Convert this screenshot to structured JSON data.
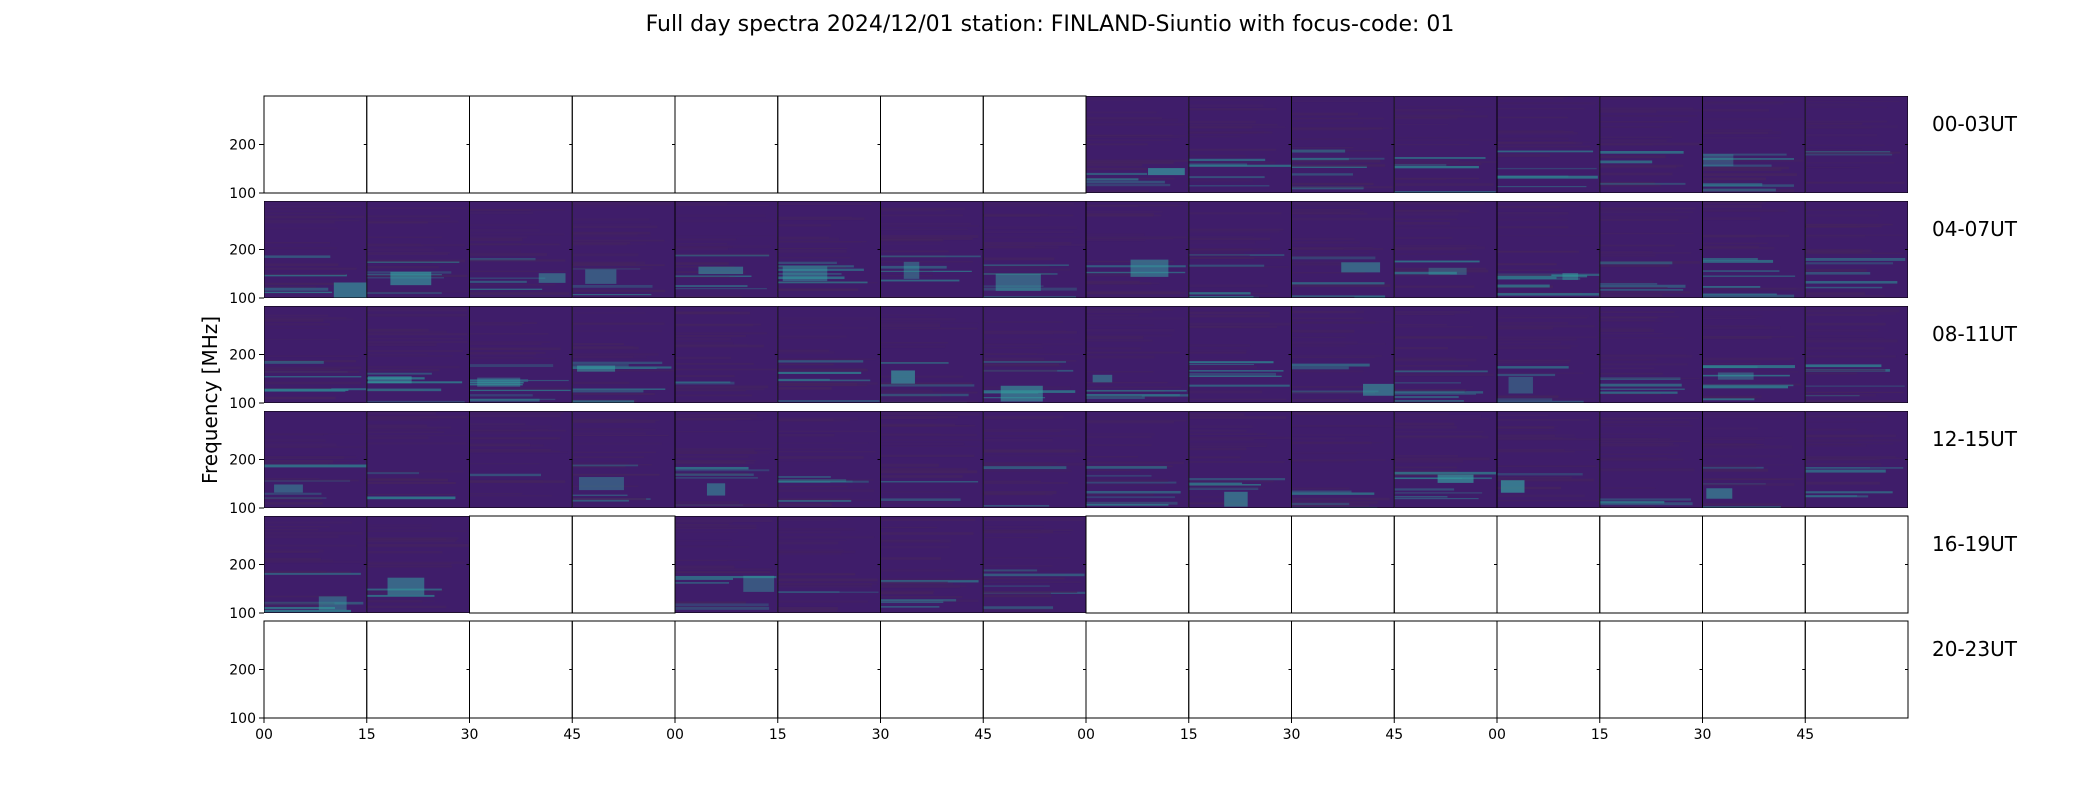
{
  "title": "Full day spectra 2024/12/01 station: FINLAND-Siuntio with focus-code: 01",
  "chart_data": {
    "type": "heatmap",
    "title": "Full day spectra 2024/12/01 station: FINLAND-Siuntio with focus-code: 01",
    "ylabel": "Frequency [MHz]",
    "xlabel": "",
    "ylim": [
      100,
      300
    ],
    "y_ticks": [
      "100",
      "200"
    ],
    "x_ticks": [
      "00",
      "15",
      "30",
      "45",
      "00",
      "15",
      "30",
      "45",
      "00",
      "15",
      "30",
      "45",
      "00",
      "15",
      "30",
      "45"
    ],
    "colormap": "viridis",
    "panels_per_row": 16,
    "panel_minutes": 15,
    "rows": [
      {
        "label": "00-03UT",
        "has_data": [
          0,
          0,
          0,
          0,
          0,
          0,
          0,
          0,
          1,
          1,
          1,
          1,
          1,
          1,
          1,
          1
        ]
      },
      {
        "label": "04-07UT",
        "has_data": [
          1,
          1,
          1,
          1,
          1,
          1,
          1,
          1,
          1,
          1,
          1,
          1,
          1,
          1,
          1,
          1
        ]
      },
      {
        "label": "08-11UT",
        "has_data": [
          1,
          1,
          1,
          1,
          1,
          1,
          1,
          1,
          1,
          1,
          1,
          1,
          1,
          1,
          1,
          1
        ]
      },
      {
        "label": "12-15UT",
        "has_data": [
          1,
          1,
          1,
          1,
          1,
          1,
          1,
          1,
          1,
          1,
          1,
          1,
          1,
          1,
          1,
          1
        ]
      },
      {
        "label": "16-19UT",
        "has_data": [
          1,
          1,
          0,
          0,
          1,
          1,
          1,
          1,
          0,
          0,
          0,
          0,
          0,
          0,
          0,
          0
        ]
      },
      {
        "label": "20-23UT",
        "has_data": [
          0,
          0,
          0,
          0,
          0,
          0,
          0,
          0,
          0,
          0,
          0,
          0,
          0,
          0,
          0,
          0
        ]
      }
    ]
  },
  "colors": {
    "background_low": "#3f1d6a",
    "background_mid": "#45245f",
    "band_highlight": "#2f7f8e",
    "band_bright": "#35a0a0",
    "frame": "#000000"
  }
}
